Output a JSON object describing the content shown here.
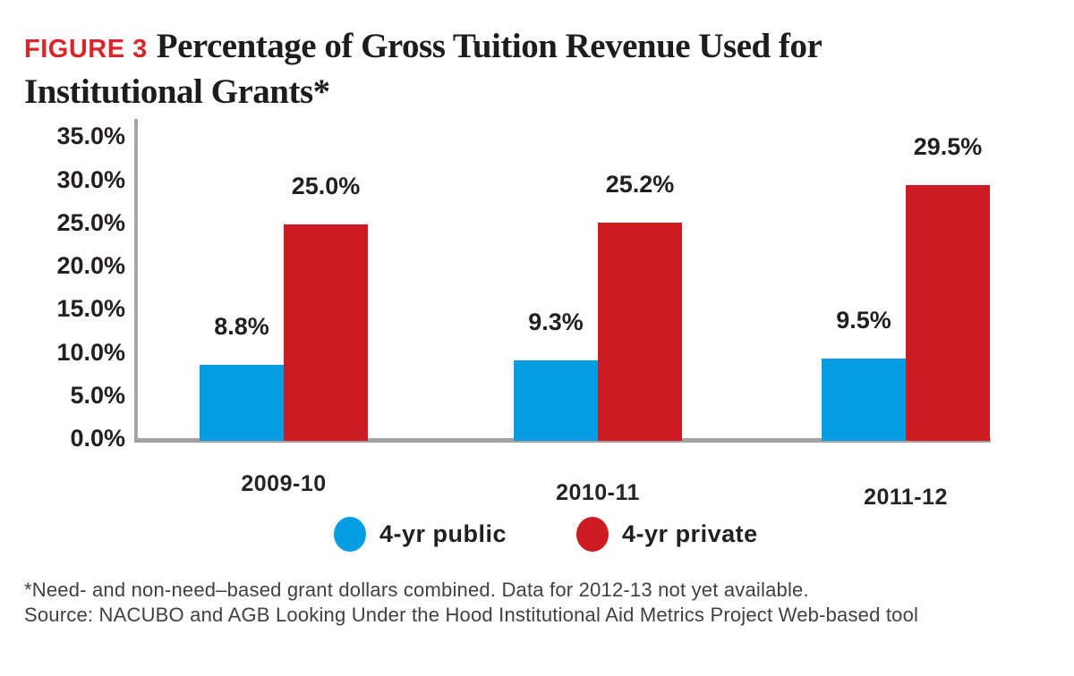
{
  "title": {
    "figure_label": "FIGURE 3",
    "line1": "Percentage of Gross Tuition Revenue Used for",
    "line2": "Institutional Grants*"
  },
  "chart_data": {
    "type": "bar",
    "title": "Percentage of Gross Tuition Revenue Used for Institutional Grants*",
    "categories": [
      "2009-10",
      "2010-11",
      "2011-12"
    ],
    "series": [
      {
        "name": "4-yr public",
        "color": "#059EE3",
        "values": [
          8.8,
          9.3,
          9.5
        ],
        "data_labels": [
          "8.8%",
          "9.3%",
          "9.5%"
        ]
      },
      {
        "name": "4-yr private",
        "color": "#CE1B21",
        "values": [
          25.0,
          25.2,
          29.5
        ],
        "data_labels": [
          "25.0%",
          "25.2%",
          "29.5%"
        ]
      }
    ],
    "xlabel": "",
    "ylabel": "",
    "ylim": [
      0,
      35
    ],
    "ytick_step": 5,
    "ytick_labels": [
      "0.0%",
      "5.0%",
      "10.0%",
      "15.0%",
      "20.0%",
      "25.0%",
      "30.0%",
      "35.0%"
    ],
    "grid": false,
    "legend_position": "bottom"
  },
  "legend": {
    "items": [
      {
        "label": "4-yr public",
        "color": "#059EE3"
      },
      {
        "label": "4-yr private",
        "color": "#CE1B21"
      }
    ]
  },
  "footnote": {
    "line1": "*Need- and non-need–based grant dollars combined. Data for 2012-13 not yet available.",
    "line2": "Source: NACUBO and AGB Looking Under the Hood Institutional Aid Metrics Project Web-based tool"
  },
  "colors": {
    "figure_label_red": "#D9252B",
    "bar_blue": "#059EE3",
    "bar_red": "#CE1B21",
    "axis_gray": "#A5A5A5",
    "text_dark": "#231F20",
    "footnote_gray": "#414042"
  }
}
